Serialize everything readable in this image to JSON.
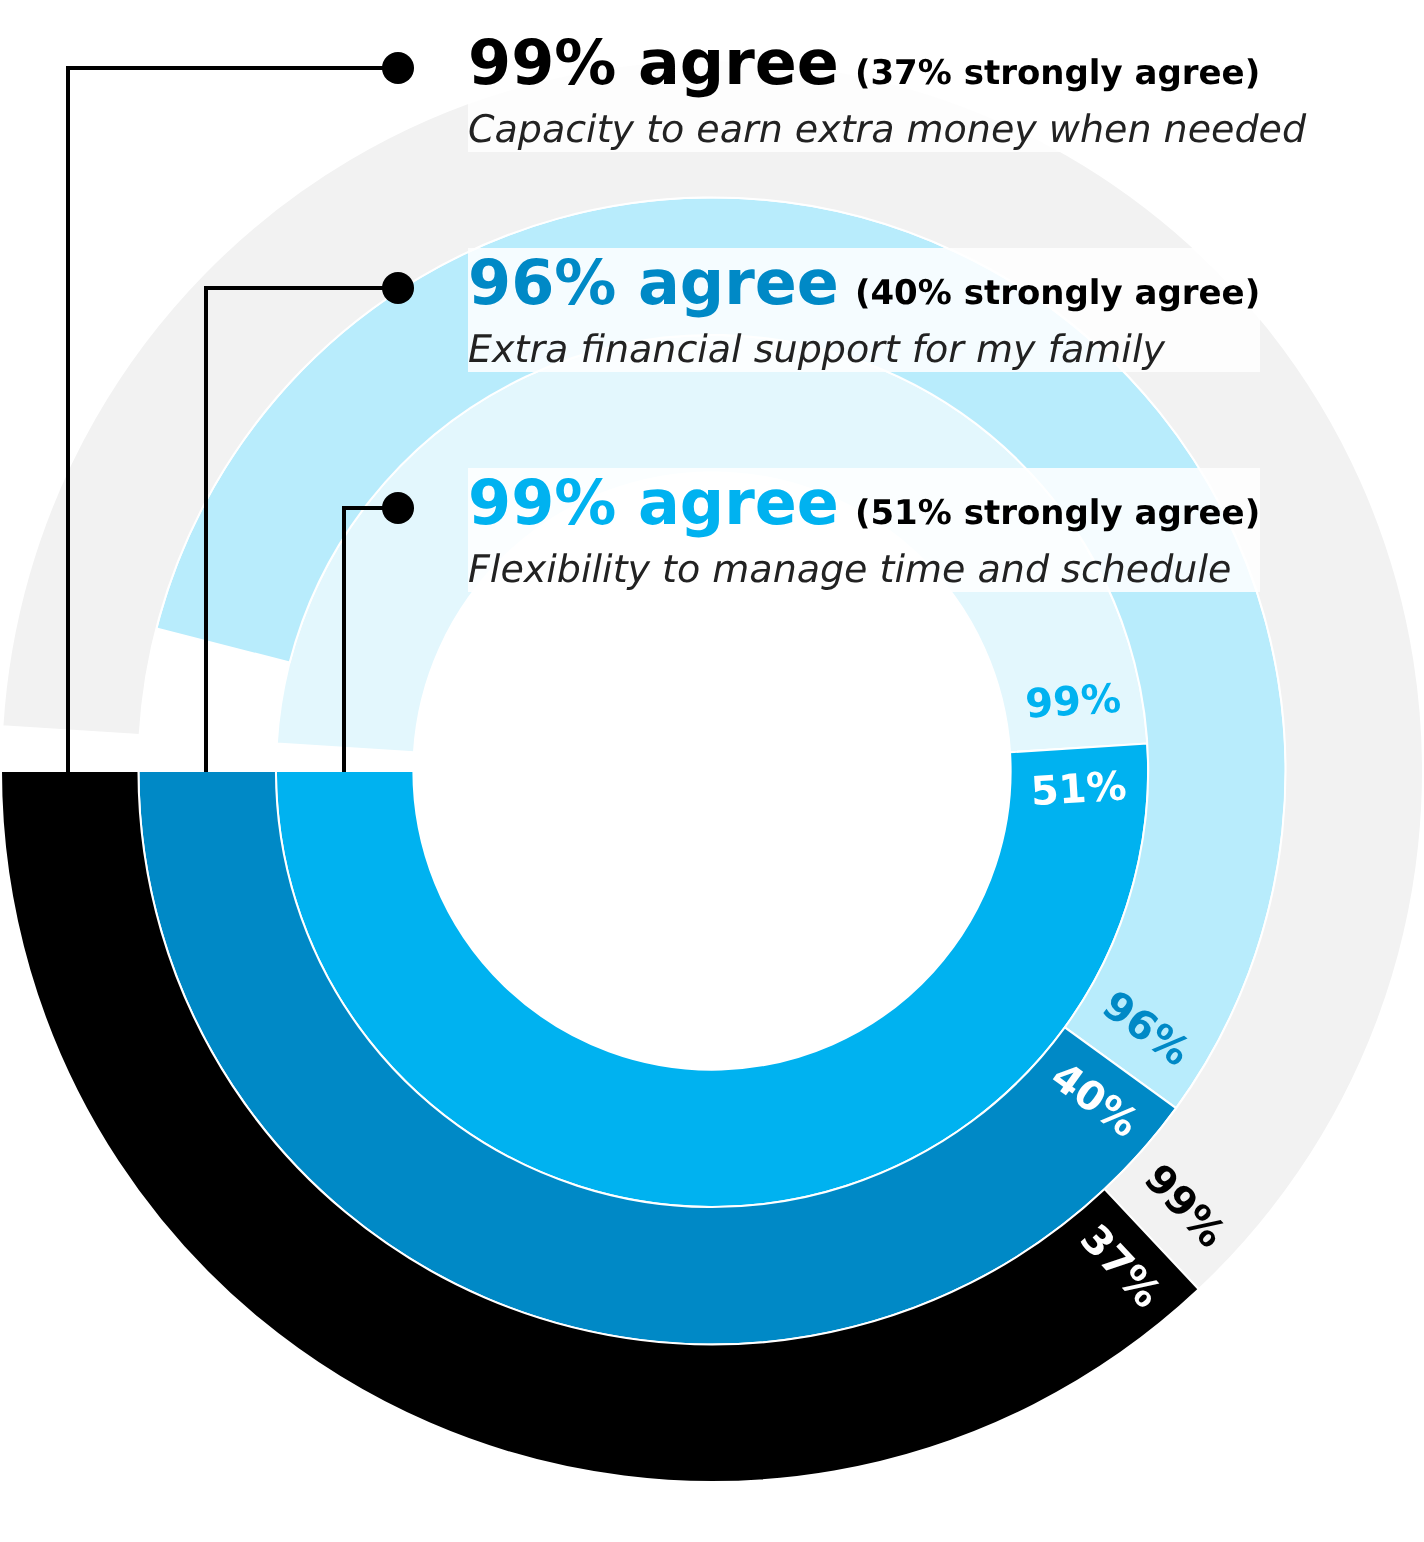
{
  "chart_data": {
    "type": "donut",
    "categories": [
      null,
      null
    ],
    "series": [
      {
        "name": "Capacity to earn extra money when needed",
        "values": [
          62,
          37
        ],
        "colors": [
          "#f2f2f2",
          "#000000"
        ],
        "value_labels": [
          null,
          "37%"
        ]
      },
      {
        "name": "Extra financial support for my family",
        "values": [
          56,
          40
        ],
        "colors": [
          "#b8ecfc",
          "#0089c6"
        ],
        "value_labels": [
          null,
          "40%"
        ]
      },
      {
        "name": "Flexibility to manage time and schedule",
        "values": [
          48,
          51
        ],
        "colors": [
          "#e3f7fd",
          "#00b2f0"
        ],
        "value_labels": [
          null,
          "51%"
        ]
      }
    ],
    "annotations": [
      "99% agree",
      "(37% strongly agree)",
      "96% agree",
      "(40% strongly agree)",
      "99% agree",
      "(51% strongly agree)",
      "99%",
      "96%",
      "99%"
    ]
  }
}
